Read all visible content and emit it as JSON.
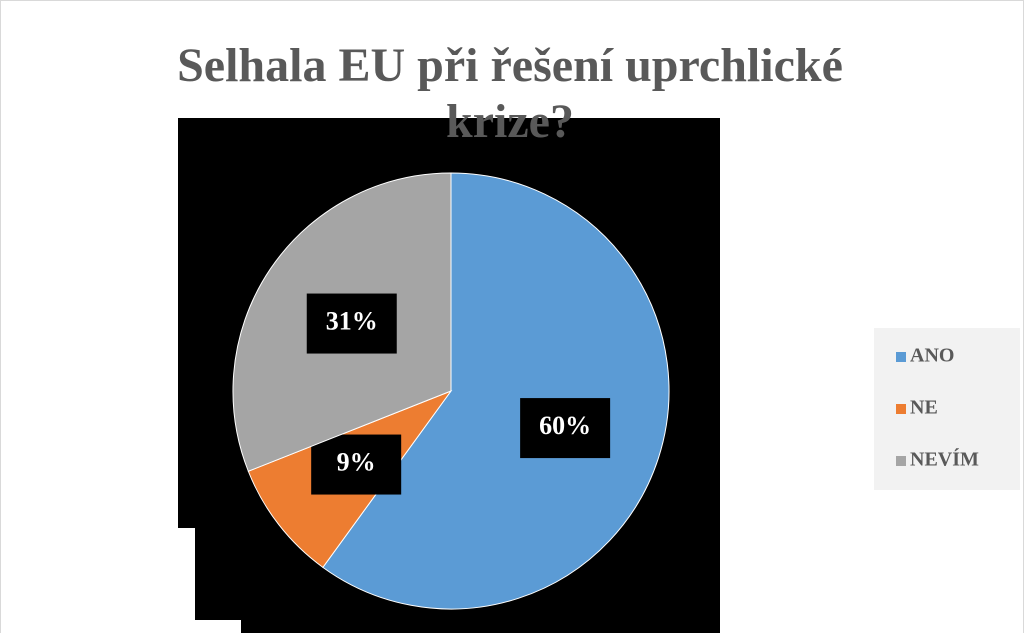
{
  "chart_data": {
    "type": "pie",
    "title": "Selhala EU při řešení uprchlické krize?",
    "categories": [
      "ANO",
      "NE",
      "NEVÍM"
    ],
    "values": [
      60,
      9,
      31
    ],
    "value_labels": [
      "60%",
      "9%",
      "31%"
    ],
    "colors": [
      "#5b9bd5",
      "#ed7d31",
      "#a5a5a5"
    ],
    "legend": "right"
  }
}
